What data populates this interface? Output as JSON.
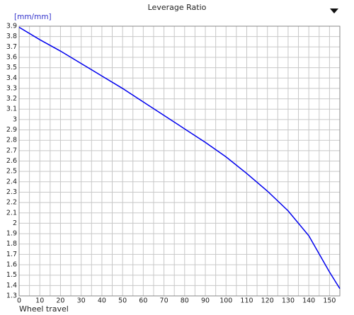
{
  "chart_data": {
    "type": "line",
    "title": "Leverage Ratio",
    "y_label": "[mm/mm]",
    "x_label": "Wheel travel",
    "x": [
      0,
      10,
      20,
      30,
      40,
      50,
      60,
      70,
      80,
      90,
      100,
      110,
      120,
      130,
      140,
      150,
      155
    ],
    "series": [
      {
        "name": "Leverage Ratio",
        "color": "#0000ee",
        "values": [
          3.89,
          3.77,
          3.66,
          3.54,
          3.42,
          3.3,
          3.17,
          3.04,
          2.91,
          2.78,
          2.64,
          2.48,
          2.31,
          2.12,
          1.88,
          1.53,
          1.37
        ]
      }
    ],
    "xlim": [
      0,
      155
    ],
    "ylim": [
      1.3,
      3.9
    ],
    "xticks": [
      0,
      10,
      20,
      30,
      40,
      50,
      60,
      70,
      80,
      90,
      100,
      110,
      120,
      130,
      140,
      150
    ],
    "yticks": [
      1.3,
      1.4,
      1.5,
      1.6,
      1.7,
      1.8,
      1.9,
      2,
      2.1,
      2.2,
      2.3,
      2.4,
      2.5,
      2.6,
      2.7,
      2.8,
      2.9,
      3,
      3.1,
      3.2,
      3.3,
      3.4,
      3.5,
      3.6,
      3.7,
      3.8,
      3.9
    ],
    "grid": true
  }
}
